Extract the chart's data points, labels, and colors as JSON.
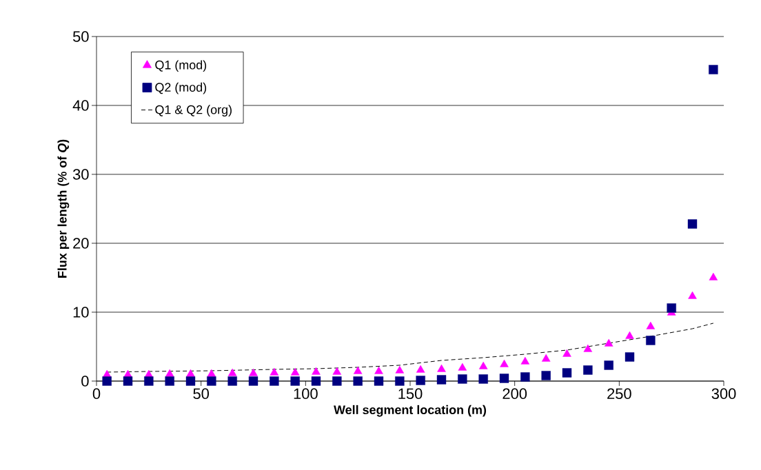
{
  "chart_data": {
    "type": "scatter",
    "xlabel": "Well segment location (m)",
    "ylabel": "**Flux per length (% of *Q*)**",
    "x": [
      5,
      15,
      25,
      35,
      45,
      55,
      65,
      75,
      85,
      95,
      105,
      115,
      125,
      135,
      145,
      155,
      165,
      175,
      185,
      195,
      205,
      215,
      225,
      235,
      245,
      255,
      265,
      275,
      285,
      295
    ],
    "series": [
      {
        "name": "Q1 (mod)",
        "marker": "triangle",
        "color": "#ff00ff",
        "values": [
          0.9,
          0.9,
          0.9,
          1.0,
          1.0,
          1.0,
          1.1,
          1.1,
          1.2,
          1.2,
          1.3,
          1.3,
          1.4,
          1.4,
          1.5,
          1.6,
          1.7,
          1.9,
          2.1,
          2.4,
          2.8,
          3.2,
          3.9,
          4.6,
          5.4,
          6.5,
          7.9,
          9.9,
          12.3,
          15.0
        ]
      },
      {
        "name": "Q2 (mod)",
        "marker": "square",
        "color": "#000080",
        "values": [
          0,
          0,
          0,
          0,
          0,
          0,
          0,
          0,
          0,
          0,
          0,
          0,
          0,
          0,
          0,
          0.1,
          0.2,
          0.3,
          0.3,
          0.4,
          0.6,
          0.8,
          1.2,
          1.6,
          2.3,
          3.5,
          5.9,
          10.6,
          22.8,
          45.2
        ]
      },
      {
        "name": "Q1 & Q2 (org)",
        "type": "line",
        "marker": "none",
        "line_style": "dashed",
        "color": "#000000",
        "x": [
          5,
          25,
          55,
          85,
          105,
          125,
          145,
          165,
          185,
          205,
          225,
          245,
          265,
          285,
          295
        ],
        "values": [
          1.3,
          1.4,
          1.5,
          1.7,
          1.8,
          2.0,
          2.3,
          3.0,
          3.4,
          3.9,
          4.5,
          5.5,
          6.5,
          7.6,
          8.4
        ]
      }
    ],
    "xlim": [
      0,
      300
    ],
    "ylim": [
      0,
      50
    ],
    "xticks": [
      0,
      50,
      100,
      150,
      200,
      250,
      300
    ],
    "yticks": [
      0,
      10,
      20,
      30,
      40,
      50
    ],
    "grid": "y",
    "legend": "top left"
  }
}
